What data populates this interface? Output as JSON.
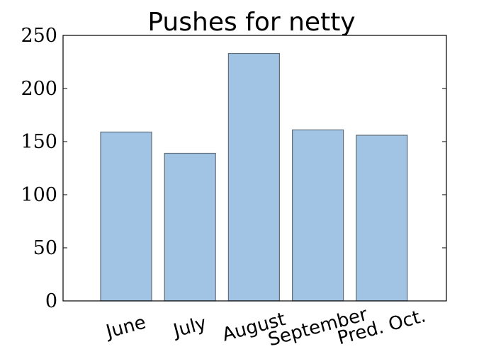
{
  "chart_data": {
    "type": "bar",
    "title": "Pushes for netty",
    "categories": [
      "June",
      "July",
      "August",
      "September",
      "Pred. Oct."
    ],
    "values": [
      159,
      139,
      233,
      161,
      156
    ],
    "ylim": [
      0,
      250
    ],
    "yticks": [
      "0",
      "50",
      "100",
      "150",
      "200",
      "250"
    ],
    "xlabel": "",
    "ylabel": "",
    "grid": false,
    "bar_color": "#a1c3e4"
  }
}
